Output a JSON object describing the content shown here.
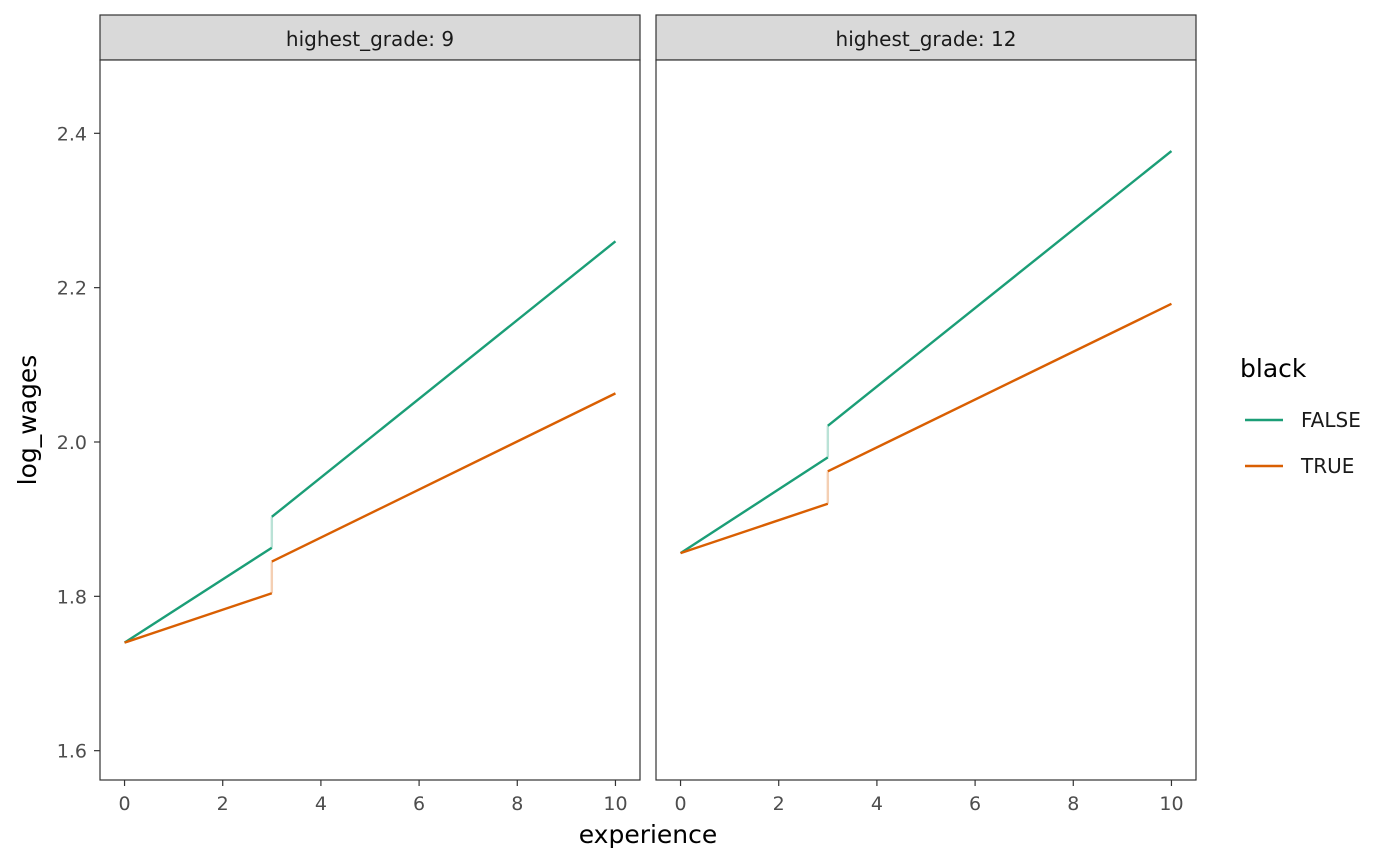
{
  "chart_data": {
    "type": "line",
    "facet_variable": "highest_grade",
    "x_label": "experience",
    "y_label": "log_wages",
    "x_ticks": [
      0,
      2,
      4,
      6,
      8,
      10
    ],
    "y_ticks": [
      1.6,
      1.8,
      2.0,
      2.2,
      2.4
    ],
    "y_tick_labels": [
      "1.6",
      "1.8",
      "2.0",
      "2.2",
      "2.4"
    ],
    "xlim": [
      -0.5,
      10.5
    ],
    "ylim": [
      1.562,
      2.495
    ],
    "grid": false,
    "legend": {
      "title": "black",
      "position": "right",
      "entries": [
        {
          "label": "FALSE",
          "color": "#1B9E77"
        },
        {
          "label": "TRUE",
          "color": "#D95F02"
        }
      ]
    },
    "facets": [
      {
        "strip_label": "highest_grade: 9",
        "series": [
          {
            "name": "FALSE",
            "color": "#1B9E77",
            "segments": [
              [
                [
                  0,
                  1.74
                ],
                [
                  3,
                  1.863
                ]
              ],
              [
                [
                  3,
                  1.903
                ],
                [
                  10,
                  2.26
                ]
              ]
            ],
            "jump": [
              3,
              1.863,
              1.903
            ]
          },
          {
            "name": "TRUE",
            "color": "#D95F02",
            "segments": [
              [
                [
                  0,
                  1.74
                ],
                [
                  3,
                  1.804
                ]
              ],
              [
                [
                  3,
                  1.845
                ],
                [
                  10,
                  2.063
                ]
              ]
            ],
            "jump": [
              3,
              1.804,
              1.845
            ]
          }
        ]
      },
      {
        "strip_label": "highest_grade: 12",
        "series": [
          {
            "name": "FALSE",
            "color": "#1B9E77",
            "segments": [
              [
                [
                  0,
                  1.856
                ],
                [
                  3,
                  1.98
                ]
              ],
              [
                [
                  3,
                  2.021
                ],
                [
                  10,
                  2.377
                ]
              ]
            ],
            "jump": [
              3,
              1.98,
              2.021
            ]
          },
          {
            "name": "TRUE",
            "color": "#D95F02",
            "segments": [
              [
                [
                  0,
                  1.856
                ],
                [
                  3,
                  1.92
                ]
              ],
              [
                [
                  3,
                  1.962
                ],
                [
                  10,
                  2.179
                ]
              ]
            ],
            "jump": [
              3,
              1.92,
              1.962
            ]
          }
        ]
      }
    ]
  }
}
